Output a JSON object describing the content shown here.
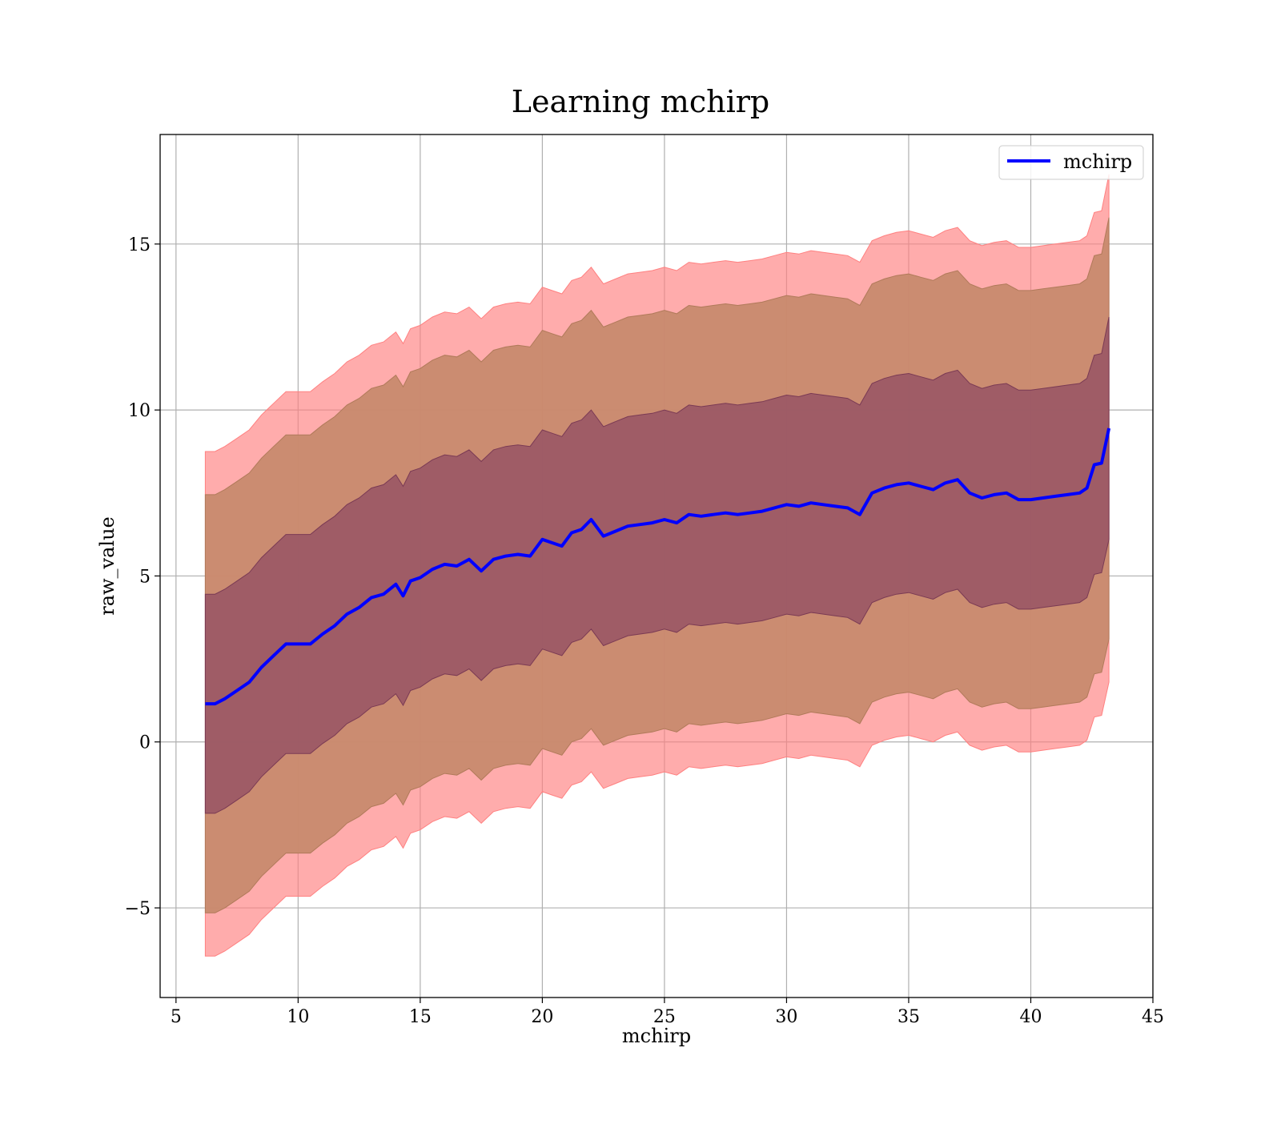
{
  "chart_data": {
    "type": "line",
    "title": "Learning mchirp",
    "xlabel": "mchirp",
    "ylabel": "raw_value",
    "xlim": [
      4.35,
      45.0
    ],
    "ylim": [
      -7.7,
      18.3
    ],
    "xticks": [
      5,
      10,
      15,
      20,
      25,
      30,
      35,
      40,
      45
    ],
    "yticks": [
      -5,
      0,
      5,
      10,
      15
    ],
    "xtick_labels": [
      "5",
      "10",
      "15",
      "20",
      "25",
      "30",
      "35",
      "40",
      "45"
    ],
    "ytick_labels": [
      "−5",
      "0",
      "5",
      "10",
      "15"
    ],
    "grid": true,
    "legend_position": "top-right",
    "x": [
      6.2,
      6.6,
      7.0,
      7.5,
      8.0,
      8.5,
      9.0,
      9.5,
      10.0,
      10.5,
      11.0,
      11.5,
      12.0,
      12.5,
      13.0,
      13.5,
      14.0,
      14.3,
      14.6,
      15.0,
      15.5,
      16.0,
      16.5,
      17.0,
      17.5,
      18.0,
      18.5,
      19.0,
      19.5,
      20.0,
      20.4,
      20.8,
      21.2,
      21.6,
      22.0,
      22.5,
      23.0,
      23.5,
      24.0,
      24.5,
      25.0,
      25.5,
      26.0,
      26.5,
      27.0,
      27.5,
      28.0,
      28.5,
      29.0,
      29.5,
      30.0,
      30.5,
      31.0,
      31.5,
      32.0,
      32.5,
      33.0,
      33.5,
      34.0,
      34.5,
      35.0,
      35.5,
      36.0,
      36.5,
      37.0,
      37.5,
      38.0,
      38.5,
      39.0,
      39.5,
      40.0,
      40.5,
      41.0,
      41.5,
      42.0,
      42.3,
      42.6,
      42.9,
      43.2
    ],
    "mean": [
      1.15,
      1.15,
      1.3,
      1.55,
      1.8,
      2.25,
      2.6,
      2.95,
      2.95,
      2.95,
      3.25,
      3.5,
      3.85,
      4.05,
      4.35,
      4.45,
      4.75,
      4.4,
      4.85,
      4.95,
      5.2,
      5.35,
      5.3,
      5.5,
      5.15,
      5.5,
      5.6,
      5.65,
      5.6,
      6.1,
      6.0,
      5.9,
      6.3,
      6.4,
      6.7,
      6.2,
      6.35,
      6.5,
      6.55,
      6.6,
      6.7,
      6.6,
      6.85,
      6.8,
      6.85,
      6.9,
      6.85,
      6.9,
      6.95,
      7.05,
      7.15,
      7.1,
      7.2,
      7.15,
      7.1,
      7.05,
      6.85,
      7.5,
      7.65,
      7.75,
      7.8,
      7.7,
      7.6,
      7.8,
      7.9,
      7.5,
      7.35,
      7.45,
      7.5,
      7.3,
      7.3,
      7.35,
      7.4,
      7.45,
      7.5,
      7.65,
      8.35,
      8.4,
      9.45
    ],
    "band_1sigma": {
      "offset_upper": 3.3,
      "offset_lower": 3.3,
      "upper_end": 12.8,
      "lower_end": 6.1
    },
    "band_2sigma": {
      "offset_upper": 6.3,
      "offset_lower": 6.3,
      "upper_end": 15.8,
      "lower_end": 3.1
    },
    "band_3sigma": {
      "offset_upper": 7.6,
      "offset_lower": 7.6,
      "upper_end": 17.1,
      "lower_end": 1.8
    },
    "series": [
      {
        "name": "mchirp",
        "color": "#0000ff"
      }
    ],
    "band_colors": {
      "outer": "#ff8080",
      "middle": "#c88a6e",
      "inner": "#8e4a62"
    }
  }
}
